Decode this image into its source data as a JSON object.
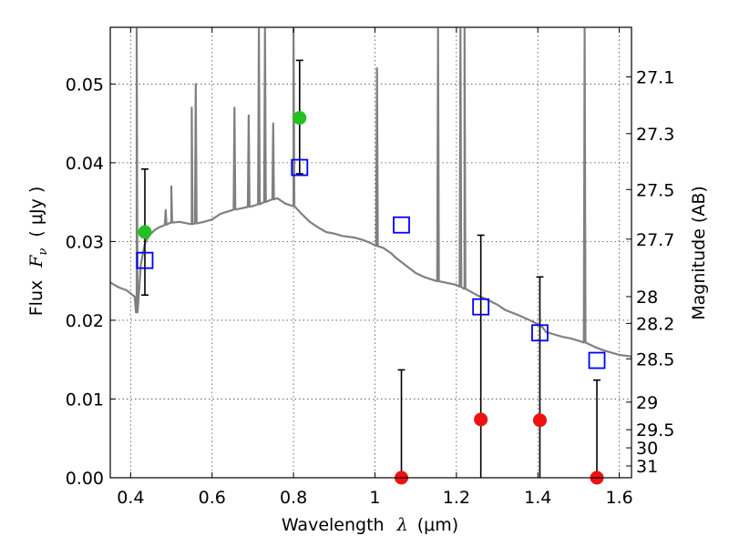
{
  "chart_data": {
    "type": "scatter",
    "title": "",
    "xlabel_prefix": "Wavelength",
    "xlabel_symbol": "λ",
    "xlabel_unit": "(μm)",
    "ylabel_prefix": "Flux",
    "ylabel_symbol": "F",
    "ylabel_sub": "ν",
    "ylabel_unit": "( μJy )",
    "y2label": "Magnitude (AB)",
    "xlim": [
      0.35,
      1.63
    ],
    "ylim": [
      0.0,
      0.0572
    ],
    "grid": true,
    "x_ticks": [
      {
        "value": 0.4,
        "label": "0.4"
      },
      {
        "value": 0.6,
        "label": "0.6"
      },
      {
        "value": 0.8,
        "label": "0.8"
      },
      {
        "value": 1.0,
        "label": "1"
      },
      {
        "value": 1.2,
        "label": "1.2"
      },
      {
        "value": 1.4,
        "label": "1.4"
      },
      {
        "value": 1.6,
        "label": "1.6"
      }
    ],
    "y_ticks": [
      {
        "value": 0.0,
        "label": "0.00"
      },
      {
        "value": 0.01,
        "label": "0.01"
      },
      {
        "value": 0.02,
        "label": "0.02"
      },
      {
        "value": 0.03,
        "label": "0.03"
      },
      {
        "value": 0.04,
        "label": "0.04"
      },
      {
        "value": 0.05,
        "label": "0.05"
      }
    ],
    "y2_ticks": [
      {
        "flux": 0.0509,
        "label": "27.1"
      },
      {
        "flux": 0.0437,
        "label": "27.3"
      },
      {
        "flux": 0.0366,
        "label": "27.5"
      },
      {
        "flux": 0.0303,
        "label": "27.7"
      },
      {
        "flux": 0.023,
        "label": "28"
      },
      {
        "flux": 0.0196,
        "label": "28.2"
      },
      {
        "flux": 0.0151,
        "label": "28.5"
      },
      {
        "flux": 0.0096,
        "label": "29"
      },
      {
        "flux": 0.0061,
        "label": "29.5"
      },
      {
        "flux": 0.0038,
        "label": "30"
      },
      {
        "flux": 0.0015,
        "label": "31"
      }
    ],
    "series": [
      {
        "kind": "model-spectrum",
        "color": "#808080",
        "x": [
          0.35,
          0.37,
          0.39,
          0.41,
          0.415,
          0.42,
          0.425,
          0.43,
          0.435,
          0.44,
          0.45,
          0.46,
          0.47,
          0.48,
          0.5,
          0.52,
          0.55,
          0.58,
          0.6,
          0.62,
          0.65,
          0.68,
          0.7,
          0.72,
          0.74,
          0.76,
          0.78,
          0.8,
          0.82,
          0.84,
          0.86,
          0.88,
          0.9,
          0.92,
          0.95,
          0.97,
          0.99,
          1.0,
          1.02,
          1.04,
          1.05,
          1.06,
          1.08,
          1.1,
          1.12,
          1.15,
          1.2,
          1.22,
          1.25,
          1.28,
          1.3,
          1.32,
          1.35,
          1.38,
          1.4,
          1.41,
          1.42,
          1.44,
          1.46,
          1.48,
          1.5,
          1.52,
          1.54,
          1.56,
          1.58,
          1.6,
          1.63
        ],
        "y": [
          0.0248,
          0.0242,
          0.0238,
          0.023,
          0.021,
          0.0232,
          0.027,
          0.0285,
          0.0297,
          0.0303,
          0.031,
          0.0315,
          0.0318,
          0.032,
          0.0324,
          0.0325,
          0.0322,
          0.0325,
          0.0328,
          0.0335,
          0.034,
          0.0343,
          0.0345,
          0.0348,
          0.0352,
          0.0355,
          0.0348,
          0.0345,
          0.0335,
          0.0325,
          0.0318,
          0.0312,
          0.031,
          0.0307,
          0.0305,
          0.0302,
          0.0298,
          0.0295,
          0.0292,
          0.0285,
          0.028,
          0.0276,
          0.0268,
          0.026,
          0.0255,
          0.025,
          0.0245,
          0.024,
          0.0232,
          0.0225,
          0.022,
          0.0213,
          0.0207,
          0.02,
          0.0195,
          0.0192,
          0.0185,
          0.0182,
          0.0179,
          0.0177,
          0.0174,
          0.0171,
          0.0166,
          0.0162,
          0.0159,
          0.0156,
          0.0154
        ],
        "emission_lines": [
          {
            "x": 0.415,
            "peak": 0.057
          },
          {
            "x": 0.486,
            "peak": 0.034
          },
          {
            "x": 0.5,
            "peak": 0.037
          },
          {
            "x": 0.55,
            "peak": 0.047
          },
          {
            "x": 0.56,
            "peak": 0.05
          },
          {
            "x": 0.655,
            "peak": 0.047
          },
          {
            "x": 0.69,
            "peak": 0.046
          },
          {
            "x": 0.715,
            "peak": 0.057
          },
          {
            "x": 0.73,
            "peak": 0.057
          },
          {
            "x": 0.75,
            "peak": 0.045
          },
          {
            "x": 0.8,
            "peak": 0.057
          },
          {
            "x": 1.005,
            "peak": 0.052
          },
          {
            "x": 1.155,
            "peak": 0.057
          },
          {
            "x": 1.21,
            "peak": 0.057
          },
          {
            "x": 1.22,
            "peak": 0.057
          },
          {
            "x": 1.515,
            "peak": 0.057
          }
        ]
      },
      {
        "kind": "model-photometry",
        "marker": "open-square",
        "color": "#0000ff",
        "x": [
          0.435,
          0.815,
          1.065,
          1.26,
          1.405,
          1.545
        ],
        "y": [
          0.0276,
          0.0394,
          0.0321,
          0.0217,
          0.0184,
          0.0149
        ]
      },
      {
        "kind": "detections",
        "marker": "filled-circle",
        "color": "#22c022",
        "x": [
          0.435,
          0.815
        ],
        "y": [
          0.0312,
          0.0457
        ],
        "yerr_low": [
          0.0232,
          0.0386
        ],
        "yerr_high": [
          0.0392,
          0.053
        ]
      },
      {
        "kind": "non-detections",
        "marker": "filled-circle",
        "color": "#ee1111",
        "x": [
          1.065,
          1.26,
          1.405,
          1.545
        ],
        "y": [
          0.0,
          0.0074,
          0.0073,
          0.0
        ],
        "yerr_low": [
          0.0,
          0.0,
          0.0,
          0.0
        ],
        "yerr_high": [
          0.0137,
          0.0308,
          0.0255,
          0.0124
        ]
      }
    ]
  }
}
